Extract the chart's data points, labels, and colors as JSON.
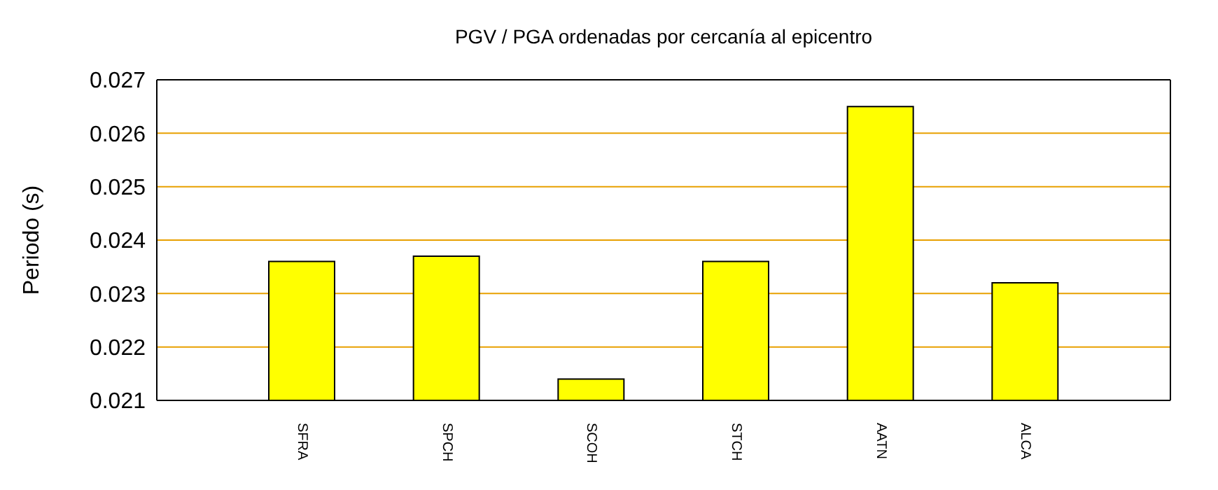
{
  "chart_data": {
    "type": "bar",
    "title": "PGV / PGA ordenadas por cercanía al epicentro",
    "ylabel": "Periodo (s)",
    "categories": [
      "SFRA",
      "SPCH",
      "SCOH",
      "STCH",
      "AATN",
      "ALCA"
    ],
    "values": [
      0.0236,
      0.0237,
      0.0214,
      0.0236,
      0.0265,
      0.0232
    ],
    "color": "#ffff00",
    "ylim": [
      0.021,
      0.027
    ],
    "yticks": [
      0.021,
      0.022,
      0.023,
      0.024,
      0.025,
      0.026,
      0.027
    ],
    "grid": "y",
    "legend": false
  }
}
